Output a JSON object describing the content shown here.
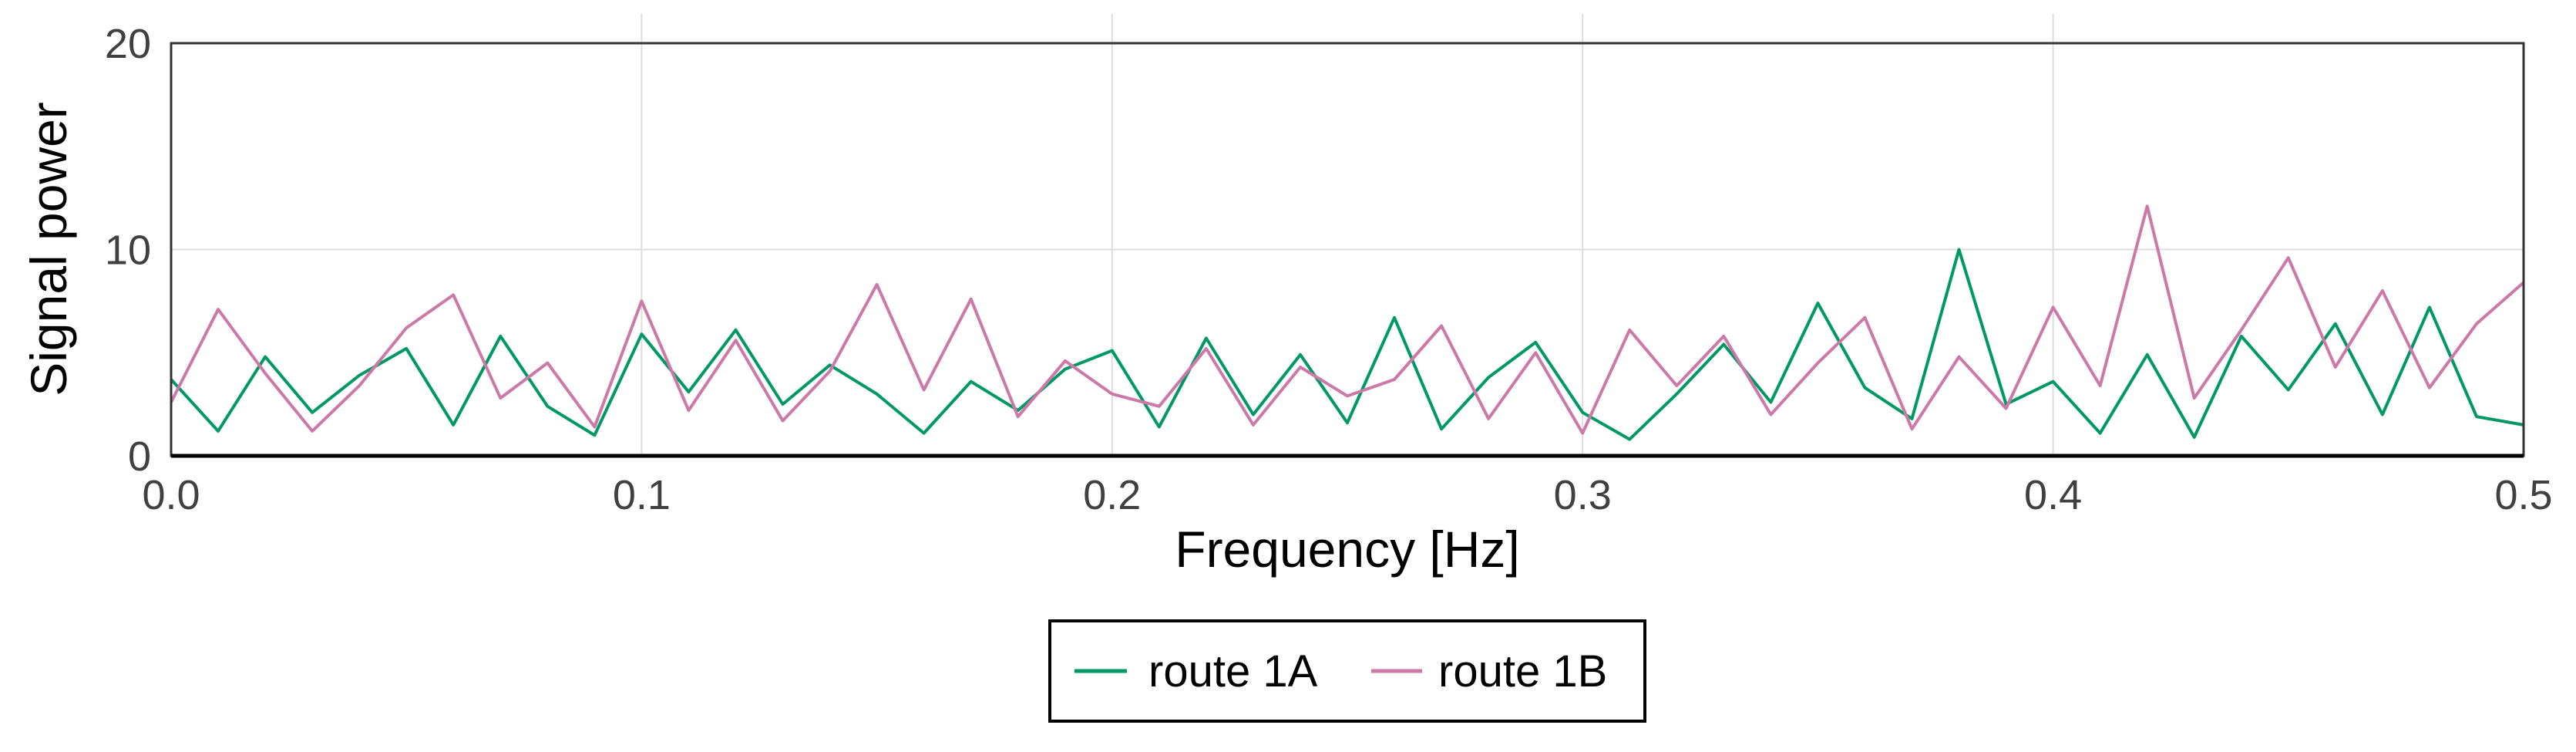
{
  "chart_data": {
    "type": "line",
    "title": "",
    "xlabel": "Frequency [Hz]",
    "ylabel": "Signal power",
    "xlim": [
      0.0,
      0.5
    ],
    "ylim": [
      0,
      20
    ],
    "xticks": [
      "0.0",
      "0.1",
      "0.2",
      "0.3",
      "0.4",
      "0.5"
    ],
    "yticks": [
      "0",
      "10",
      "20"
    ],
    "grid": true,
    "legend_position": "bottom-center",
    "x": [
      0.0,
      0.01,
      0.02,
      0.03,
      0.04,
      0.05,
      0.06,
      0.07,
      0.08,
      0.09,
      0.1,
      0.11,
      0.12,
      0.13,
      0.14,
      0.15,
      0.16,
      0.17,
      0.18,
      0.19,
      0.2,
      0.21,
      0.22,
      0.23,
      0.24,
      0.25,
      0.26,
      0.27,
      0.28,
      0.29,
      0.3,
      0.31,
      0.32,
      0.33,
      0.34,
      0.35,
      0.36,
      0.37,
      0.38,
      0.39,
      0.4,
      0.41,
      0.42,
      0.43,
      0.44,
      0.45,
      0.46,
      0.47,
      0.48,
      0.49,
      0.5
    ],
    "series": [
      {
        "name": "route 1A",
        "color": "#009966",
        "values": [
          3.7,
          1.2,
          4.8,
          2.1,
          3.9,
          5.2,
          1.5,
          5.8,
          2.4,
          1.0,
          5.9,
          3.1,
          6.1,
          2.5,
          4.4,
          3.0,
          1.1,
          3.6,
          2.2,
          4.2,
          5.1,
          1.4,
          5.7,
          2.0,
          4.9,
          1.6,
          6.7,
          1.3,
          3.8,
          5.5,
          2.1,
          0.8,
          3.0,
          5.4,
          2.6,
          7.4,
          3.3,
          1.8,
          10.0,
          2.5,
          3.6,
          1.1,
          4.9,
          0.9,
          5.8,
          3.2,
          6.4,
          2.0,
          7.2,
          1.9,
          1.5
        ]
      },
      {
        "name": "route 1B",
        "color": "#cc79a7",
        "values": [
          2.6,
          7.1,
          4.0,
          1.2,
          3.4,
          6.2,
          7.8,
          2.8,
          4.5,
          1.4,
          7.5,
          2.2,
          5.6,
          1.7,
          4.1,
          8.3,
          3.2,
          7.6,
          1.9,
          4.6,
          3.0,
          2.4,
          5.2,
          1.5,
          4.3,
          2.9,
          3.7,
          6.3,
          1.8,
          5.0,
          1.1,
          6.1,
          3.4,
          5.8,
          2.0,
          4.5,
          6.7,
          1.3,
          4.8,
          2.3,
          7.2,
          3.4,
          12.1,
          2.8,
          6.1,
          9.6,
          4.3,
          8.0,
          3.3,
          6.4,
          8.4
        ]
      }
    ]
  }
}
